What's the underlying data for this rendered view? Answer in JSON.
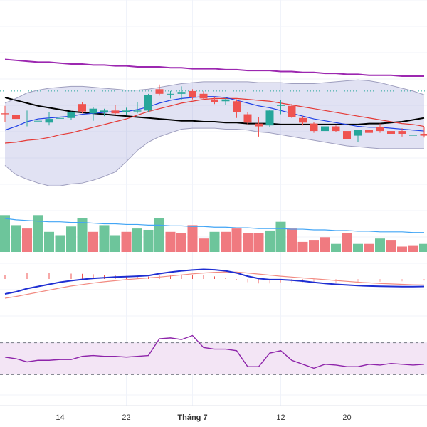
{
  "chart_data": {
    "type": "candlestick-with-indicators",
    "grid": true,
    "x_tick_labels": [
      {
        "label": "14",
        "index": 5
      },
      {
        "label": "22",
        "index": 11
      },
      {
        "label": "Tháng 7",
        "index": 17
      },
      {
        "label": "12",
        "index": 25
      },
      {
        "label": "20",
        "index": 31
      }
    ],
    "price_panel": {
      "ylim": [
        20.0,
        37.0
      ],
      "dotted_reference_level": 31.8,
      "candles": [
        {
          "o": 29.4,
          "h": 30.2,
          "l": 28.5,
          "c": 29.3
        },
        {
          "o": 29.2,
          "h": 30.1,
          "l": 28.6,
          "c": 28.8
        },
        {
          "o": 28.5,
          "h": 29.7,
          "l": 28.0,
          "c": 28.5
        },
        {
          "o": 28.6,
          "h": 29.3,
          "l": 27.9,
          "c": 28.6
        },
        {
          "o": 28.4,
          "h": 29.5,
          "l": 28.1,
          "c": 28.8
        },
        {
          "o": 28.9,
          "h": 29.4,
          "l": 28.5,
          "c": 28.9
        },
        {
          "o": 28.9,
          "h": 29.6,
          "l": 28.7,
          "c": 29.5
        },
        {
          "o": 30.4,
          "h": 30.6,
          "l": 29.4,
          "c": 29.6
        },
        {
          "o": 29.4,
          "h": 30.1,
          "l": 28.6,
          "c": 29.9
        },
        {
          "o": 29.5,
          "h": 29.9,
          "l": 29.1,
          "c": 29.7
        },
        {
          "o": 29.7,
          "h": 30.3,
          "l": 29.2,
          "c": 29.4
        },
        {
          "o": 29.5,
          "h": 30.0,
          "l": 29.2,
          "c": 29.7
        },
        {
          "o": 29.6,
          "h": 30.6,
          "l": 29.4,
          "c": 29.7
        },
        {
          "o": 29.7,
          "h": 31.5,
          "l": 29.5,
          "c": 31.4
        },
        {
          "o": 32.0,
          "h": 32.5,
          "l": 31.3,
          "c": 31.5
        },
        {
          "o": 31.5,
          "h": 31.8,
          "l": 31.0,
          "c": 31.5
        },
        {
          "o": 31.5,
          "h": 32.3,
          "l": 30.8,
          "c": 31.7
        },
        {
          "o": 31.8,
          "h": 32.0,
          "l": 30.9,
          "c": 31.1
        },
        {
          "o": 31.5,
          "h": 31.8,
          "l": 30.8,
          "c": 31.0
        },
        {
          "o": 30.9,
          "h": 31.2,
          "l": 30.4,
          "c": 30.6
        },
        {
          "o": 30.7,
          "h": 31.1,
          "l": 30.3,
          "c": 30.9
        },
        {
          "o": 30.7,
          "h": 30.9,
          "l": 28.9,
          "c": 29.5
        },
        {
          "o": 29.3,
          "h": 29.5,
          "l": 28.2,
          "c": 28.4
        },
        {
          "o": 28.3,
          "h": 29.0,
          "l": 26.9,
          "c": 28.0
        },
        {
          "o": 28.1,
          "h": 29.8,
          "l": 27.9,
          "c": 29.7
        },
        {
          "o": 30.2,
          "h": 30.8,
          "l": 29.3,
          "c": 30.3
        },
        {
          "o": 30.2,
          "h": 30.4,
          "l": 28.9,
          "c": 29.0
        },
        {
          "o": 28.9,
          "h": 29.1,
          "l": 28.1,
          "c": 28.4
        },
        {
          "o": 28.3,
          "h": 28.5,
          "l": 27.3,
          "c": 27.5
        },
        {
          "o": 27.5,
          "h": 28.3,
          "l": 27.2,
          "c": 28.0
        },
        {
          "o": 28.0,
          "h": 28.1,
          "l": 27.4,
          "c": 27.5
        },
        {
          "o": 27.5,
          "h": 27.7,
          "l": 26.4,
          "c": 26.6
        },
        {
          "o": 27.0,
          "h": 27.6,
          "l": 26.3,
          "c": 27.6
        },
        {
          "o": 27.6,
          "h": 27.6,
          "l": 26.6,
          "c": 27.3
        },
        {
          "o": 27.9,
          "h": 28.3,
          "l": 27.3,
          "c": 27.5
        },
        {
          "o": 27.5,
          "h": 27.9,
          "l": 27.1,
          "c": 27.2
        },
        {
          "o": 27.5,
          "h": 27.8,
          "l": 26.9,
          "c": 27.2
        },
        {
          "o": 27.0,
          "h": 27.5,
          "l": 26.7,
          "c": 27.1
        },
        {
          "o": 27.2,
          "h": 27.9,
          "l": 26.8,
          "c": 27.0
        }
      ],
      "series": [
        {
          "role": "slow-ma",
          "color": "#9c27b0",
          "values": [
            35.2,
            35.1,
            35.0,
            34.9,
            34.9,
            34.8,
            34.7,
            34.7,
            34.6,
            34.6,
            34.5,
            34.5,
            34.4,
            34.4,
            34.4,
            34.3,
            34.3,
            34.2,
            34.2,
            34.2,
            34.1,
            34.1,
            34.0,
            34.0,
            34.0,
            33.9,
            33.9,
            33.8,
            33.8,
            33.7,
            33.7,
            33.6,
            33.6,
            33.5,
            33.5,
            33.5,
            33.4,
            33.4,
            33.4
          ]
        },
        {
          "role": "long-ma",
          "color": "#000000",
          "values": [
            31.1,
            30.8,
            30.5,
            30.2,
            30.0,
            29.8,
            29.6,
            29.5,
            29.4,
            29.3,
            29.2,
            29.1,
            29.0,
            28.9,
            28.8,
            28.7,
            28.6,
            28.6,
            28.5,
            28.5,
            28.4,
            28.4,
            28.3,
            28.3,
            28.3,
            28.2,
            28.2,
            28.2,
            28.2,
            28.2,
            28.2,
            28.2,
            28.2,
            28.3,
            28.3,
            28.4,
            28.5,
            28.7,
            28.9
          ]
        },
        {
          "role": "mid-ma",
          "color": "#e53935",
          "values": [
            26.2,
            26.3,
            26.5,
            26.6,
            26.8,
            27.1,
            27.3,
            27.6,
            27.9,
            28.2,
            28.5,
            28.8,
            29.2,
            29.6,
            29.9,
            30.2,
            30.5,
            30.7,
            30.9,
            31.0,
            31.0,
            31.0,
            30.9,
            30.8,
            30.7,
            30.5,
            30.3,
            30.1,
            29.9,
            29.7,
            29.5,
            29.3,
            29.1,
            28.9,
            28.7,
            28.5,
            28.3,
            28.2,
            28.0
          ]
        },
        {
          "role": "fast-ma",
          "color": "#1e40e6",
          "values": [
            27.6,
            28.0,
            28.5,
            28.8,
            28.9,
            29.0,
            29.1,
            29.3,
            29.4,
            29.5,
            29.6,
            29.6,
            29.8,
            30.1,
            30.5,
            30.8,
            31.0,
            31.1,
            31.2,
            31.2,
            31.1,
            30.8,
            30.5,
            30.2,
            30.0,
            29.7,
            29.4,
            29.1,
            28.8,
            28.6,
            28.4,
            28.2,
            28.0,
            27.9,
            27.9,
            27.8,
            27.7,
            27.6,
            27.5
          ]
        },
        {
          "role": "band-upper",
          "color": "#9e9ebe",
          "values": [
            30.5,
            31.0,
            31.6,
            31.9,
            32.1,
            32.2,
            32.3,
            32.3,
            32.2,
            32.1,
            32.0,
            31.9,
            31.9,
            32.0,
            32.2,
            32.4,
            32.6,
            32.7,
            32.8,
            32.8,
            32.8,
            32.8,
            32.8,
            32.7,
            32.7,
            32.7,
            32.6,
            32.6,
            32.6,
            32.7,
            32.8,
            32.9,
            33.0,
            32.9,
            32.7,
            32.4,
            32.1,
            31.8,
            31.4
          ]
        },
        {
          "role": "band-lower",
          "color": "#9e9ebe",
          "values": [
            23.8,
            22.8,
            22.3,
            21.9,
            21.6,
            21.6,
            21.8,
            21.9,
            22.2,
            22.6,
            23.1,
            24.2,
            25.4,
            26.3,
            26.9,
            27.3,
            27.7,
            27.8,
            27.8,
            27.8,
            27.7,
            27.7,
            27.6,
            27.4,
            27.3,
            27.1,
            26.9,
            26.7,
            26.5,
            26.3,
            26.1,
            25.9,
            25.8,
            25.7,
            25.6,
            25.6,
            25.6,
            25.6,
            25.6
          ]
        }
      ]
    },
    "volume_panel": {
      "ylim": [
        0,
        100
      ],
      "volume_ma_color": "#42a5f5",
      "bars": [
        {
          "v": 55,
          "up": true
        },
        {
          "v": 40,
          "up": true
        },
        {
          "v": 35,
          "up": false
        },
        {
          "v": 55,
          "up": true
        },
        {
          "v": 30,
          "up": true
        },
        {
          "v": 25,
          "up": true
        },
        {
          "v": 38,
          "up": true
        },
        {
          "v": 50,
          "up": true
        },
        {
          "v": 30,
          "up": false
        },
        {
          "v": 40,
          "up": true
        },
        {
          "v": 25,
          "up": true
        },
        {
          "v": 30,
          "up": false
        },
        {
          "v": 35,
          "up": true
        },
        {
          "v": 33,
          "up": true
        },
        {
          "v": 50,
          "up": true
        },
        {
          "v": 30,
          "up": false
        },
        {
          "v": 28,
          "up": false
        },
        {
          "v": 40,
          "up": false
        },
        {
          "v": 20,
          "up": false
        },
        {
          "v": 30,
          "up": true
        },
        {
          "v": 30,
          "up": false
        },
        {
          "v": 35,
          "up": false
        },
        {
          "v": 28,
          "up": false
        },
        {
          "v": 28,
          "up": false
        },
        {
          "v": 32,
          "up": true
        },
        {
          "v": 45,
          "up": true
        },
        {
          "v": 35,
          "up": false
        },
        {
          "v": 15,
          "up": false
        },
        {
          "v": 18,
          "up": false
        },
        {
          "v": 22,
          "up": false
        },
        {
          "v": 12,
          "up": true
        },
        {
          "v": 28,
          "up": false
        },
        {
          "v": 12,
          "up": true
        },
        {
          "v": 12,
          "up": false
        },
        {
          "v": 20,
          "up": true
        },
        {
          "v": 18,
          "up": false
        },
        {
          "v": 8,
          "up": false
        },
        {
          "v": 10,
          "up": false
        },
        {
          "v": 12,
          "up": true
        }
      ],
      "volume_ma": [
        50,
        48,
        47,
        46,
        45,
        45,
        44,
        44,
        43,
        42,
        42,
        41,
        41,
        40,
        40,
        39,
        39,
        38,
        38,
        37,
        37,
        36,
        36,
        35,
        35,
        35,
        34,
        34,
        33,
        33,
        32,
        32,
        31,
        31,
        30,
        30,
        30,
        29,
        29
      ]
    },
    "macd_panel": {
      "ylim": [
        -1.0,
        1.0
      ],
      "macd_color": "#1e2ed2",
      "signal_color": "#f28b82",
      "macd": [
        -0.7,
        -0.6,
        -0.45,
        -0.35,
        -0.25,
        -0.15,
        -0.08,
        -0.02,
        0.03,
        0.06,
        0.09,
        0.11,
        0.13,
        0.16,
        0.25,
        0.32,
        0.38,
        0.42,
        0.45,
        0.43,
        0.38,
        0.28,
        0.13,
        0.02,
        -0.03,
        -0.03,
        -0.06,
        -0.1,
        -0.16,
        -0.21,
        -0.25,
        -0.28,
        -0.31,
        -0.33,
        -0.34,
        -0.35,
        -0.36,
        -0.36,
        -0.35
      ],
      "signal": [
        -0.9,
        -0.82,
        -0.72,
        -0.62,
        -0.52,
        -0.42,
        -0.33,
        -0.26,
        -0.19,
        -0.13,
        -0.08,
        -0.03,
        0.01,
        0.05,
        0.09,
        0.14,
        0.19,
        0.24,
        0.28,
        0.31,
        0.33,
        0.32,
        0.28,
        0.23,
        0.18,
        0.13,
        0.09,
        0.05,
        0.01,
        -0.03,
        -0.07,
        -0.11,
        -0.15,
        -0.18,
        -0.21,
        -0.23,
        -0.25,
        -0.27,
        -0.28
      ],
      "histogram": [
        0.2,
        0.22,
        0.27,
        0.27,
        0.27,
        0.27,
        0.25,
        0.24,
        0.22,
        0.19,
        0.17,
        0.14,
        0.12,
        0.11,
        0.16,
        0.18,
        0.19,
        0.18,
        0.17,
        0.12,
        0.05,
        -0.04,
        -0.15,
        -0.21,
        -0.21,
        -0.16,
        -0.15,
        -0.15,
        -0.17,
        -0.18,
        -0.18,
        -0.17,
        -0.16,
        -0.15,
        -0.13,
        -0.12,
        -0.11,
        -0.09,
        -0.07
      ]
    },
    "rsi_panel": {
      "ylim": [
        0,
        100
      ],
      "upper_band": 70,
      "lower_band": 30,
      "line_color": "#8e24aa",
      "band_fill": "#f3e5f5",
      "values": [
        52,
        50,
        46,
        48,
        48,
        49,
        49,
        53,
        54,
        53,
        53,
        52,
        53,
        54,
        75,
        76,
        74,
        79,
        64,
        62,
        62,
        60,
        40,
        40,
        57,
        60,
        48,
        43,
        38,
        43,
        42,
        40,
        40,
        43,
        42,
        44,
        43,
        42,
        43
      ]
    }
  }
}
